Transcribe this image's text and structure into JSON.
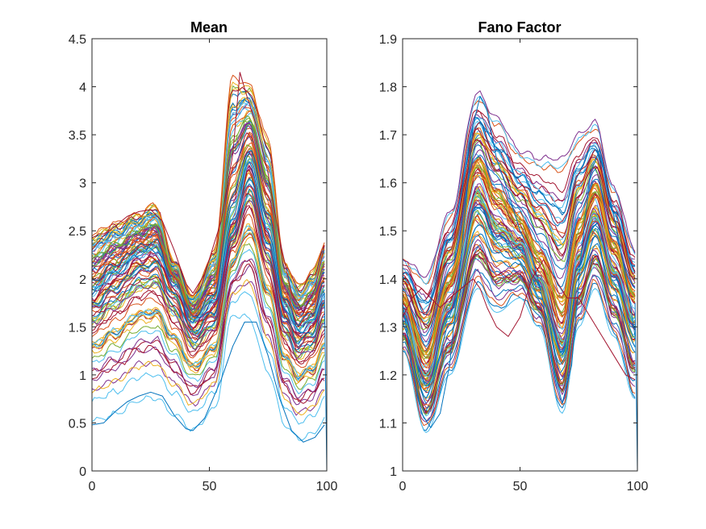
{
  "chart_data": [
    {
      "type": "line",
      "title": "Mean",
      "xlabel": "",
      "ylabel": "",
      "xlim": [
        0,
        100
      ],
      "ylim": [
        0,
        4.5
      ],
      "xticks": [
        "0",
        "50",
        "100"
      ],
      "yticks": [
        "0",
        "0.5",
        "1",
        "1.5",
        "2",
        "2.5",
        "3",
        "3.5",
        "4",
        "4.5"
      ],
      "grid": false,
      "series_count": 100,
      "profile": {
        "x": [
          0,
          10,
          20,
          27,
          35,
          43,
          52,
          60,
          67,
          75,
          82,
          88,
          94,
          99
        ],
        "y": [
          1.85,
          2.05,
          2.25,
          2.3,
          1.95,
          1.55,
          1.75,
          2.6,
          3.2,
          2.5,
          1.7,
          1.45,
          1.55,
          1.85
        ]
      },
      "envelope": {
        "upper": [
          2.5,
          2.6,
          2.7,
          2.8,
          2.2,
          1.85,
          2.3,
          4.15,
          4.05,
          3.5,
          2.2,
          1.95,
          2.1,
          2.4
        ],
        "lower": [
          0.48,
          0.55,
          0.7,
          0.72,
          0.55,
          0.4,
          0.6,
          1.6,
          1.55,
          1.0,
          0.45,
          0.3,
          0.35,
          0.5
        ]
      },
      "notable_series": [
        {
          "x": [
            0,
            5,
            10,
            15,
            20,
            25,
            30,
            35,
            40,
            43,
            48,
            55,
            60,
            65,
            70,
            75,
            80,
            85,
            90,
            95,
            99
          ],
          "y": [
            0.48,
            0.5,
            0.62,
            0.72,
            0.78,
            0.82,
            0.78,
            0.58,
            0.44,
            0.42,
            0.55,
            0.95,
            1.3,
            1.55,
            1.55,
            1.2,
            0.75,
            0.42,
            0.3,
            0.35,
            0.48
          ]
        },
        {
          "x": [
            0,
            5,
            10,
            15,
            20,
            25,
            30,
            35,
            40,
            43,
            48,
            55,
            60,
            63,
            66,
            70,
            75,
            80,
            85,
            90,
            95,
            99
          ],
          "y": [
            2.3,
            2.45,
            2.55,
            2.65,
            2.7,
            2.72,
            2.6,
            2.3,
            1.95,
            1.85,
            2.05,
            2.6,
            3.3,
            4.15,
            3.9,
            3.6,
            3.1,
            2.4,
            1.85,
            1.65,
            1.9,
            2.35
          ]
        }
      ]
    },
    {
      "type": "line",
      "title": "Fano Factor",
      "xlabel": "",
      "ylabel": "",
      "xlim": [
        0,
        100
      ],
      "ylim": [
        1,
        1.9
      ],
      "xticks": [
        "0",
        "50",
        "100"
      ],
      "yticks": [
        "1",
        "1.1",
        "1.2",
        "1.3",
        "1.4",
        "1.5",
        "1.6",
        "1.7",
        "1.8",
        "1.9"
      ],
      "grid": false,
      "series_count": 100,
      "profile": {
        "x": [
          0,
          10,
          20,
          32,
          40,
          50,
          58,
          68,
          75,
          82,
          90,
          99
        ],
        "y": [
          1.35,
          1.22,
          1.38,
          1.62,
          1.55,
          1.5,
          1.42,
          1.3,
          1.48,
          1.57,
          1.45,
          1.35
        ]
      },
      "envelope": {
        "upper": [
          1.45,
          1.42,
          1.55,
          1.8,
          1.75,
          1.68,
          1.67,
          1.68,
          1.72,
          1.74,
          1.6,
          1.47
        ],
        "lower": [
          1.25,
          1.08,
          1.2,
          1.38,
          1.33,
          1.36,
          1.3,
          1.12,
          1.3,
          1.38,
          1.28,
          1.15
        ]
      },
      "notable_series": [
        {
          "x": [
            0,
            4,
            8,
            12,
            16,
            20,
            25,
            30,
            33,
            36,
            40,
            45,
            50,
            55,
            60,
            64,
            68,
            72,
            76,
            80,
            84,
            88,
            92,
            96,
            99
          ],
          "y": [
            1.35,
            1.22,
            1.12,
            1.09,
            1.12,
            1.22,
            1.45,
            1.72,
            1.78,
            1.75,
            1.65,
            1.58,
            1.5,
            1.45,
            1.35,
            1.22,
            1.14,
            1.22,
            1.45,
            1.62,
            1.67,
            1.58,
            1.48,
            1.38,
            1.28
          ]
        },
        {
          "x": [
            0,
            4,
            8,
            12,
            16,
            20,
            25,
            30,
            33,
            36,
            40,
            45,
            50,
            55,
            60,
            65,
            70,
            75,
            80,
            85,
            90,
            95,
            99
          ],
          "y": [
            1.32,
            1.36,
            1.38,
            1.36,
            1.34,
            1.36,
            1.38,
            1.4,
            1.38,
            1.34,
            1.3,
            1.28,
            1.32,
            1.4,
            1.44,
            1.4,
            1.36,
            1.36,
            1.32,
            1.28,
            1.24,
            1.2,
            1.19
          ]
        }
      ]
    }
  ],
  "style": {
    "palette": [
      "#0072BD",
      "#D95319",
      "#EDB120",
      "#7E2F8E",
      "#77AC30",
      "#4DBEEE",
      "#A2142F"
    ],
    "axis_color": "#262626",
    "background": "#ffffff"
  }
}
